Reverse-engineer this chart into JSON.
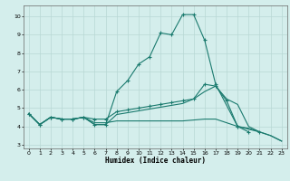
{
  "xlabel": "Humidex (Indice chaleur)",
  "bg_color": "#d4eeec",
  "line_color": "#1a7a6e",
  "grid_color": "#b8d8d4",
  "xlim": [
    -0.5,
    23.5
  ],
  "ylim": [
    2.8,
    10.6
  ],
  "xticks": [
    0,
    1,
    2,
    3,
    4,
    5,
    6,
    7,
    8,
    9,
    10,
    11,
    12,
    13,
    14,
    15,
    16,
    17,
    18,
    19,
    20,
    21,
    22,
    23
  ],
  "yticks": [
    3,
    4,
    5,
    6,
    7,
    8,
    9,
    10
  ],
  "line1_x": [
    0,
    1,
    2,
    3,
    4,
    5,
    6,
    7,
    8,
    9,
    10,
    11,
    12,
    13,
    14,
    15,
    16,
    17,
    19,
    20
  ],
  "line1_y": [
    4.7,
    4.1,
    4.5,
    4.4,
    4.4,
    4.5,
    4.1,
    4.1,
    5.9,
    6.5,
    7.4,
    7.8,
    9.1,
    9.0,
    10.1,
    10.1,
    8.7,
    6.3,
    4.0,
    3.7
  ],
  "line1_marker": true,
  "line2_x": [
    0,
    1,
    2,
    3,
    4,
    5,
    6,
    7,
    8,
    9,
    10,
    11,
    12,
    13,
    14,
    15,
    16,
    17,
    18,
    19,
    20,
    21,
    22,
    23
  ],
  "line2_y": [
    4.7,
    4.1,
    4.5,
    4.4,
    4.4,
    4.5,
    4.1,
    4.1,
    4.65,
    4.75,
    4.85,
    4.95,
    5.05,
    5.15,
    5.25,
    5.5,
    5.9,
    6.2,
    5.5,
    5.2,
    4.0,
    3.7,
    3.5,
    3.2
  ],
  "line2_marker": false,
  "line3_x": [
    0,
    1,
    2,
    3,
    4,
    5,
    6,
    7,
    8,
    9,
    10,
    11,
    12,
    13,
    14,
    15,
    16,
    17,
    18,
    19,
    20,
    21,
    22,
    23
  ],
  "line3_y": [
    4.7,
    4.1,
    4.5,
    4.4,
    4.4,
    4.5,
    4.2,
    4.2,
    4.3,
    4.3,
    4.3,
    4.3,
    4.3,
    4.3,
    4.3,
    4.35,
    4.4,
    4.4,
    4.2,
    4.0,
    3.9,
    3.7,
    3.5,
    3.2
  ],
  "line3_marker": false,
  "line4_x": [
    0,
    1,
    2,
    3,
    4,
    5,
    6,
    7,
    8,
    9,
    10,
    11,
    12,
    13,
    14,
    15,
    16,
    17,
    18,
    19,
    21
  ],
  "line4_y": [
    4.7,
    4.1,
    4.5,
    4.4,
    4.4,
    4.5,
    4.4,
    4.4,
    4.8,
    4.9,
    5.0,
    5.1,
    5.2,
    5.3,
    5.4,
    5.5,
    6.3,
    6.2,
    5.4,
    4.0,
    3.7
  ],
  "line4_marker": true
}
